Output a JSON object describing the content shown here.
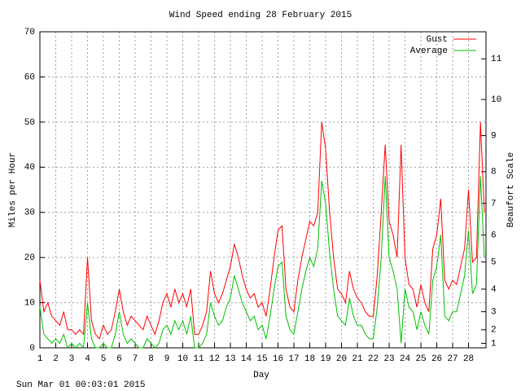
{
  "chart_data": {
    "type": "line",
    "title": "Wind Speed ending 28 February 2015",
    "x_label": "Day",
    "y_label": "Miles per Hour",
    "y2_label": "Beaufort Scale",
    "footer": "Sun Mar 01 00:03:01 2015",
    "x": [
      1,
      1.25,
      1.5,
      1.75,
      2,
      2.25,
      2.5,
      2.75,
      3,
      3.25,
      3.5,
      3.75,
      4,
      4.25,
      4.5,
      4.75,
      5,
      5.25,
      5.5,
      5.75,
      6,
      6.25,
      6.5,
      6.75,
      7,
      7.25,
      7.5,
      7.75,
      8,
      8.25,
      8.5,
      8.75,
      9,
      9.25,
      9.5,
      9.75,
      10,
      10.25,
      10.5,
      10.75,
      11,
      11.25,
      11.5,
      11.75,
      12,
      12.25,
      12.5,
      12.75,
      13,
      13.25,
      13.5,
      13.75,
      14,
      14.25,
      14.5,
      14.75,
      15,
      15.25,
      15.5,
      15.75,
      16,
      16.25,
      16.5,
      16.75,
      17,
      17.25,
      17.5,
      17.75,
      18,
      18.25,
      18.5,
      18.75,
      19,
      19.25,
      19.5,
      19.75,
      20,
      20.25,
      20.5,
      20.75,
      21,
      21.25,
      21.5,
      21.75,
      22,
      22.25,
      22.5,
      22.75,
      23,
      23.25,
      23.5,
      23.75,
      24,
      24.25,
      24.5,
      24.75,
      25,
      25.25,
      25.5,
      25.75,
      26,
      26.25,
      26.5,
      26.75,
      27,
      27.25,
      27.5,
      27.75,
      28,
      28.25,
      28.5,
      28.75,
      29
    ],
    "series": [
      {
        "name": "Gust",
        "color": "#ff0000",
        "values": [
          15,
          8,
          10,
          7,
          6,
          5,
          8,
          4,
          4,
          3,
          4,
          3,
          20,
          6,
          3,
          2,
          5,
          3,
          4,
          8,
          13,
          8,
          5,
          7,
          6,
          5,
          4,
          7,
          5,
          3,
          6,
          10,
          12,
          9,
          13,
          10,
          12,
          9,
          13,
          3,
          3,
          5,
          8,
          17,
          12,
          10,
          12,
          15,
          18,
          23,
          20,
          16,
          13,
          11,
          12,
          9,
          10,
          7,
          13,
          20,
          26,
          27,
          13,
          9,
          8,
          15,
          20,
          24,
          28,
          27,
          30,
          50,
          44,
          30,
          20,
          13,
          12,
          10,
          17,
          13,
          11,
          10,
          8,
          7,
          7,
          16,
          30,
          45,
          28,
          25,
          20,
          45,
          20,
          14,
          13,
          9,
          14,
          10,
          8,
          22,
          25,
          33,
          15,
          13,
          15,
          14,
          18,
          22,
          35,
          19,
          20,
          50,
          30
        ]
      },
      {
        "name": "Average",
        "color": "#00c000",
        "values": [
          9,
          3,
          2,
          1,
          2,
          1,
          3,
          0,
          1,
          0,
          1,
          0,
          10,
          2,
          0,
          0,
          1,
          0,
          0,
          3,
          8,
          3,
          1,
          2,
          1,
          0,
          0,
          2,
          1,
          0,
          1,
          4,
          5,
          3,
          6,
          4,
          6,
          3,
          7,
          0,
          0,
          1,
          3,
          10,
          7,
          5,
          6,
          9,
          11,
          16,
          13,
          10,
          8,
          6,
          7,
          4,
          5,
          2,
          7,
          13,
          18,
          19,
          7,
          4,
          3,
          8,
          13,
          17,
          20,
          18,
          22,
          37,
          32,
          21,
          13,
          7,
          6,
          5,
          11,
          7,
          5,
          5,
          3,
          2,
          2,
          9,
          20,
          38,
          20,
          17,
          13,
          1,
          13,
          9,
          8,
          4,
          8,
          5,
          3,
          15,
          18,
          25,
          7,
          6,
          8,
          8,
          12,
          16,
          26,
          12,
          14,
          38,
          20
        ]
      }
    ],
    "xlim": [
      1,
      29.1
    ],
    "ylim": [
      0,
      70
    ],
    "y2lim": [
      0,
      70
    ],
    "xticks": [
      1,
      2,
      3,
      4,
      5,
      6,
      7,
      8,
      9,
      10,
      11,
      12,
      13,
      14,
      15,
      16,
      17,
      18,
      19,
      20,
      21,
      22,
      23,
      24,
      25,
      26,
      27,
      28
    ],
    "yticks": [
      0,
      10,
      20,
      30,
      40,
      50,
      60,
      70
    ],
    "y2ticks": [
      1,
      {
        "value": 4,
        "label": "2"
      },
      {
        "value": 8,
        "label": "3"
      },
      {
        "value": 13,
        "label": "4"
      },
      {
        "value": 19,
        "label": "5"
      },
      {
        "value": 25,
        "label": "6"
      },
      {
        "value": 32,
        "label": "7"
      },
      {
        "value": 39,
        "label": "8"
      },
      {
        "value": 47,
        "label": "9"
      },
      {
        "value": 55,
        "label": "10"
      },
      {
        "value": 64,
        "label": "11"
      }
    ],
    "grid": true,
    "legend": "top-right"
  }
}
